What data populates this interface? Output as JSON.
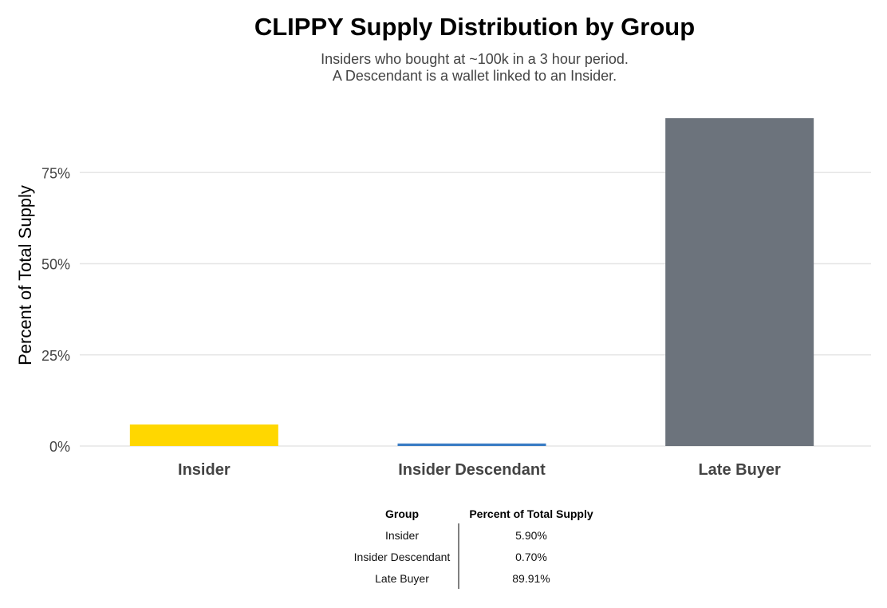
{
  "chart_data": {
    "type": "bar",
    "title": "CLIPPY Supply Distribution by Group",
    "subtitle": [
      "Insiders who bought at ~100k in a 3 hour period.",
      "A Descendant is a wallet linked to an Insider."
    ],
    "xlabel": "",
    "ylabel": "Percent of Total Supply",
    "categories": [
      "Insider",
      "Insider Descendant",
      "Late Buyer"
    ],
    "values": [
      5.9,
      0.7,
      89.91
    ],
    "colors": [
      "#FFD700",
      "#3A7CC4",
      "#6C737C"
    ],
    "ylim": [
      0,
      95
    ],
    "yticks": [
      0,
      25,
      50,
      75
    ],
    "ytick_labels": [
      "0%",
      "25%",
      "50%",
      "75%"
    ],
    "grid": "horizontal",
    "legend": "none",
    "table": {
      "headers": [
        "Group",
        "Percent of Total Supply"
      ],
      "rows": [
        [
          "Insider",
          "5.90%"
        ],
        [
          "Insider Descendant",
          "0.70%"
        ],
        [
          "Late Buyer",
          "89.91%"
        ]
      ]
    }
  }
}
